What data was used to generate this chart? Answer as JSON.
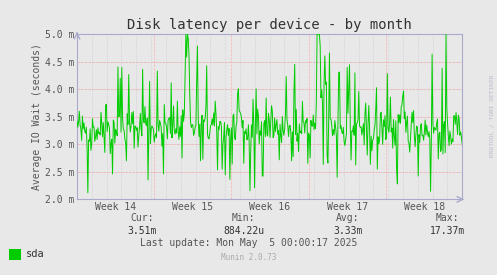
{
  "title": "Disk latency per device - by month",
  "ylabel": "Average IO Wait (seconds)",
  "outer_bg_color": "#E8E8E8",
  "plot_bg_color": "#E8E8E8",
  "line_color": "#00CC00",
  "hgrid_color": "#FF9999",
  "vgrid_color": "#FF9999",
  "dot_grid_color": "#BBBBCC",
  "ylim": [
    2.0,
    5.0
  ],
  "ytick_labels": [
    "2.0 m",
    "2.5 m",
    "3.0 m",
    "3.5 m",
    "4.0 m",
    "4.5 m",
    "5.0 m"
  ],
  "ytick_values": [
    2.0,
    2.5,
    3.0,
    3.5,
    4.0,
    4.5,
    5.0
  ],
  "xtick_labels": [
    "Week 14",
    "Week 15",
    "Week 16",
    "Week 17",
    "Week 18"
  ],
  "legend_label": "sda",
  "legend_color": "#00CC00",
  "cur_label": "Cur:",
  "cur_value": "3.51m",
  "min_label": "Min:",
  "min_value": "884.22u",
  "avg_label": "Avg:",
  "avg_value": "3.33m",
  "max_label": "Max:",
  "max_value": "17.37m",
  "last_update": "Last update: Mon May  5 00:00:17 2025",
  "watermark": "Munin 2.0.73",
  "rrdtool_label": "RRDTOOL / TOBI OETIKER",
  "num_points": 500,
  "seed": 42,
  "title_fontsize": 10,
  "tick_fontsize": 7,
  "label_fontsize": 7,
  "stats_fontsize": 7,
  "axis_color": "#AAAACC",
  "text_color": "#555555",
  "title_color": "#333333"
}
